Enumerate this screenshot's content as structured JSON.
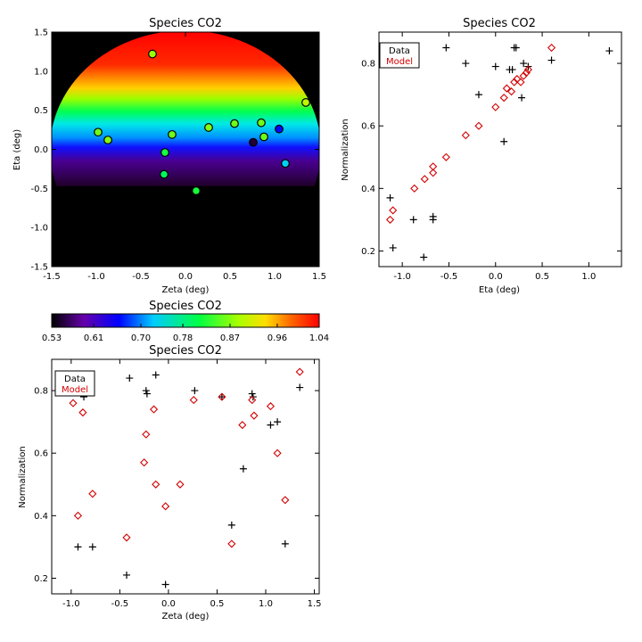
{
  "colors": {
    "data": "#000000",
    "model": "#d40000",
    "background": "#000000"
  },
  "chart_data": [
    {
      "id": "map",
      "type": "heatmap",
      "title": "Species CO2",
      "xlabel": "Zeta (deg)",
      "ylabel": "Eta (deg)",
      "xlim": [
        -1.5,
        1.5
      ],
      "ylim": [
        -1.5,
        1.5
      ],
      "xticks": [
        "-1.5",
        "-1.0",
        "-0.5",
        "0.0",
        "0.5",
        "1.0",
        "1.5"
      ],
      "yticks": [
        "-1.5",
        "-1.0",
        "-0.5",
        "0.0",
        "0.5",
        "1.0",
        "1.5"
      ],
      "xtick_values": [
        -1.5,
        -1.0,
        -0.5,
        0.0,
        0.5,
        1.0,
        1.5
      ],
      "ytick_values": [
        -1.5,
        -1.0,
        -0.5,
        0.0,
        0.5,
        1.0,
        1.5
      ],
      "disk_radius": 1.52,
      "gradient_cutoff_eta": -0.47,
      "points": [
        {
          "zeta": -0.37,
          "eta": 1.22,
          "value": 0.88
        },
        {
          "zeta": -0.98,
          "eta": 0.22,
          "value": 0.86
        },
        {
          "zeta": -0.87,
          "eta": 0.12,
          "value": 0.87
        },
        {
          "zeta": -0.15,
          "eta": 0.19,
          "value": 0.86
        },
        {
          "zeta": -0.23,
          "eta": -0.04,
          "value": 0.82
        },
        {
          "zeta": -0.24,
          "eta": -0.32,
          "value": 0.8
        },
        {
          "zeta": 0.12,
          "eta": -0.53,
          "value": 0.82
        },
        {
          "zeta": 0.26,
          "eta": 0.28,
          "value": 0.87
        },
        {
          "zeta": 0.55,
          "eta": 0.33,
          "value": 0.86
        },
        {
          "zeta": 0.76,
          "eta": 0.09,
          "value": 0.55
        },
        {
          "zeta": 0.85,
          "eta": 0.34,
          "value": 0.86
        },
        {
          "zeta": 0.88,
          "eta": 0.16,
          "value": 0.86
        },
        {
          "zeta": 1.05,
          "eta": 0.26,
          "value": 0.66
        },
        {
          "zeta": 1.12,
          "eta": -0.18,
          "value": 0.73
        },
        {
          "zeta": 1.35,
          "eta": 0.6,
          "value": 0.9
        }
      ]
    },
    {
      "id": "colorbar",
      "type": "heatmap",
      "title": "Species CO2",
      "range": [
        0.53,
        1.04
      ],
      "tick_values": [
        0.53,
        0.61,
        0.7,
        0.78,
        0.87,
        0.96,
        1.04
      ],
      "ticks": [
        "0.53",
        "0.61",
        "0.70",
        "0.78",
        "0.87",
        "0.96",
        "1.04"
      ]
    },
    {
      "id": "eta",
      "type": "scatter",
      "title": "Species CO2",
      "xlabel": "Eta (deg)",
      "ylabel": "Normalization",
      "xlim": [
        -1.25,
        1.35
      ],
      "ylim": [
        0.15,
        0.9
      ],
      "xticks": [
        "-1.0",
        "-0.5",
        "0.0",
        "0.5",
        "1.0"
      ],
      "xtick_values": [
        -1.0,
        -0.5,
        0.0,
        0.5,
        1.0
      ],
      "yticks": [
        "0.2",
        "0.4",
        "0.6",
        "0.8"
      ],
      "ytick_values": [
        0.2,
        0.4,
        0.6,
        0.8
      ],
      "legend": {
        "position": "top-left",
        "labels": [
          "Data",
          "Model"
        ]
      },
      "series": [
        {
          "name": "Data",
          "marker": "plus",
          "points": [
            [
              -1.13,
              0.37
            ],
            [
              -1.1,
              0.21
            ],
            [
              -0.88,
              0.3
            ],
            [
              -0.77,
              0.18
            ],
            [
              -0.67,
              0.31
            ],
            [
              -0.67,
              0.3
            ],
            [
              -0.53,
              0.85
            ],
            [
              -0.32,
              0.8
            ],
            [
              -0.18,
              0.7
            ],
            [
              0.0,
              0.79
            ],
            [
              0.09,
              0.55
            ],
            [
              0.15,
              0.78
            ],
            [
              0.18,
              0.78
            ],
            [
              0.2,
              0.85
            ],
            [
              0.22,
              0.85
            ],
            [
              0.28,
              0.69
            ],
            [
              0.3,
              0.8
            ],
            [
              0.35,
              0.79
            ],
            [
              0.6,
              0.81
            ],
            [
              1.22,
              0.84
            ]
          ]
        },
        {
          "name": "Model",
          "marker": "diamond",
          "points": [
            [
              -1.13,
              0.3
            ],
            [
              -1.1,
              0.33
            ],
            [
              -0.87,
              0.4
            ],
            [
              -0.76,
              0.43
            ],
            [
              -0.67,
              0.45
            ],
            [
              -0.67,
              0.47
            ],
            [
              -0.53,
              0.5
            ],
            [
              -0.32,
              0.57
            ],
            [
              -0.18,
              0.6
            ],
            [
              0.0,
              0.66
            ],
            [
              0.09,
              0.69
            ],
            [
              0.12,
              0.72
            ],
            [
              0.17,
              0.71
            ],
            [
              0.2,
              0.74
            ],
            [
              0.23,
              0.75
            ],
            [
              0.27,
              0.74
            ],
            [
              0.3,
              0.76
            ],
            [
              0.33,
              0.77
            ],
            [
              0.35,
              0.78
            ],
            [
              0.6,
              0.85
            ]
          ]
        }
      ]
    },
    {
      "id": "zeta",
      "type": "scatter",
      "title": "Species CO2",
      "xlabel": "Zeta (deg)",
      "ylabel": "Normalization",
      "xlim": [
        -1.2,
        1.55
      ],
      "ylim": [
        0.15,
        0.9
      ],
      "xticks": [
        "-1.0",
        "-0.5",
        "0.0",
        "0.5",
        "1.0",
        "1.5"
      ],
      "xtick_values": [
        -1.0,
        -0.5,
        0.0,
        0.5,
        1.0,
        1.5
      ],
      "yticks": [
        "0.2",
        "0.4",
        "0.6",
        "0.8"
      ],
      "ytick_values": [
        0.2,
        0.4,
        0.6,
        0.8
      ],
      "legend": {
        "position": "top-left",
        "labels": [
          "Data",
          "Model"
        ]
      },
      "series": [
        {
          "name": "Data",
          "marker": "plus",
          "points": [
            [
              -0.93,
              0.3
            ],
            [
              -0.87,
              0.78
            ],
            [
              -0.78,
              0.3
            ],
            [
              -0.43,
              0.21
            ],
            [
              -0.4,
              0.84
            ],
            [
              -0.23,
              0.8
            ],
            [
              -0.22,
              0.79
            ],
            [
              -0.13,
              0.85
            ],
            [
              -0.03,
              0.18
            ],
            [
              0.27,
              0.8
            ],
            [
              0.55,
              0.78
            ],
            [
              0.65,
              0.37
            ],
            [
              0.77,
              0.55
            ],
            [
              0.86,
              0.79
            ],
            [
              0.87,
              0.78
            ],
            [
              1.05,
              0.69
            ],
            [
              1.12,
              0.7
            ],
            [
              1.2,
              0.31
            ],
            [
              1.35,
              0.81
            ]
          ]
        },
        {
          "name": "Model",
          "marker": "diamond",
          "points": [
            [
              -0.98,
              0.76
            ],
            [
              -0.93,
              0.4
            ],
            [
              -0.88,
              0.73
            ],
            [
              -0.78,
              0.47
            ],
            [
              -0.43,
              0.33
            ],
            [
              -0.25,
              0.57
            ],
            [
              -0.23,
              0.66
            ],
            [
              -0.15,
              0.74
            ],
            [
              -0.13,
              0.5
            ],
            [
              -0.03,
              0.43
            ],
            [
              0.12,
              0.5
            ],
            [
              0.26,
              0.77
            ],
            [
              0.55,
              0.78
            ],
            [
              0.65,
              0.31
            ],
            [
              0.76,
              0.69
            ],
            [
              0.86,
              0.77
            ],
            [
              0.88,
              0.72
            ],
            [
              1.05,
              0.75
            ],
            [
              1.12,
              0.6
            ],
            [
              1.2,
              0.45
            ],
            [
              1.35,
              0.86
            ]
          ]
        }
      ]
    }
  ]
}
